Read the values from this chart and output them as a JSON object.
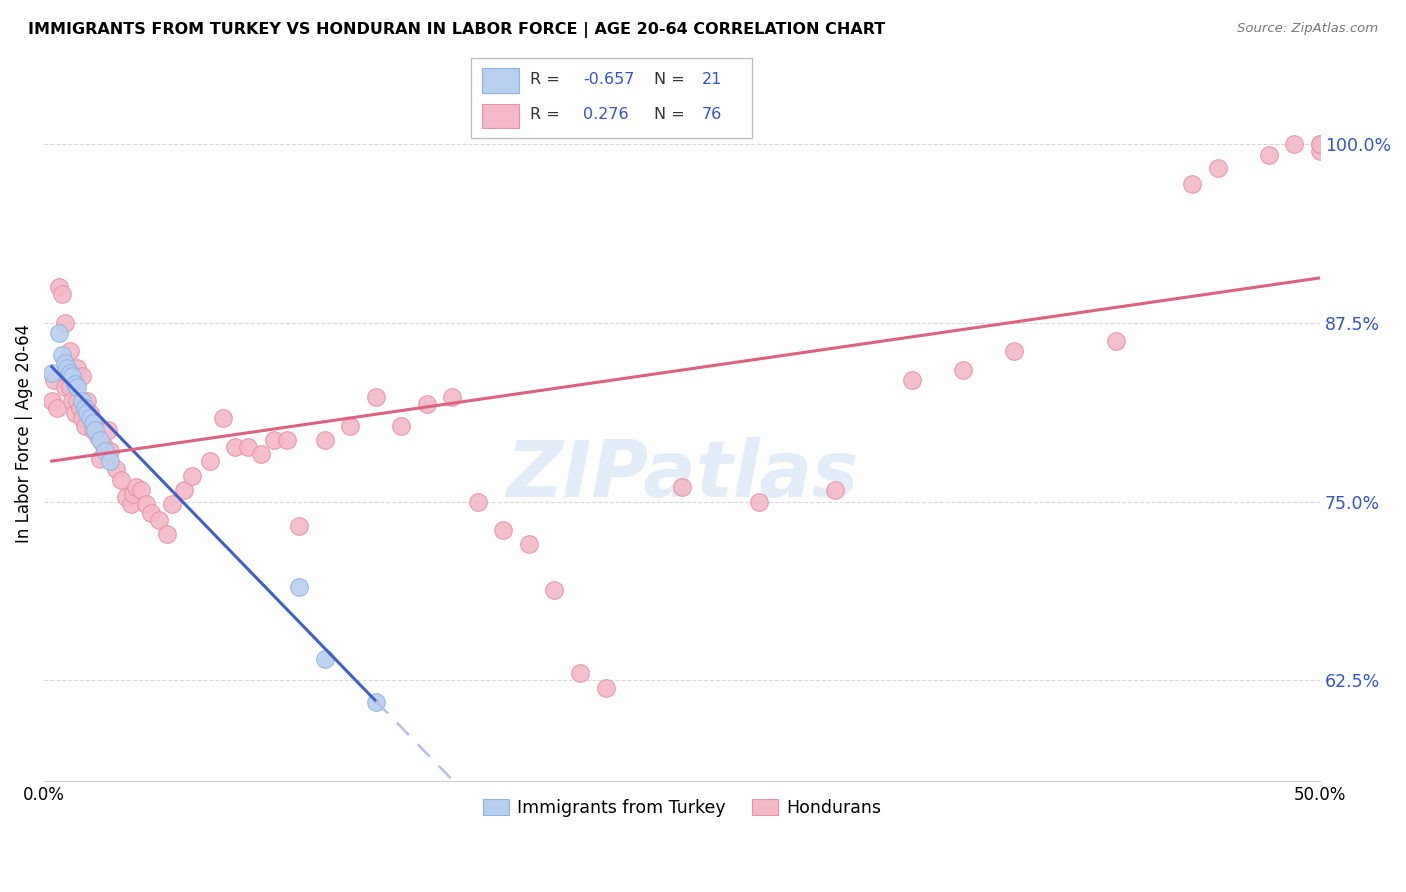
{
  "title": "IMMIGRANTS FROM TURKEY VS HONDURAN IN LABOR FORCE | AGE 20-64 CORRELATION CHART",
  "source": "Source: ZipAtlas.com",
  "ylabel": "In Labor Force | Age 20-64",
  "xmin": 0.0,
  "xmax": 0.5,
  "ymin": 0.555,
  "ymax": 1.04,
  "yticks": [
    0.625,
    0.75,
    0.875,
    1.0
  ],
  "ytick_labels": [
    "62.5%",
    "75.0%",
    "87.5%",
    "100.0%"
  ],
  "xticks": [
    0.0,
    0.05,
    0.1,
    0.15,
    0.2,
    0.25,
    0.3,
    0.35,
    0.4,
    0.45,
    0.5
  ],
  "xtick_labels": [
    "0.0%",
    "",
    "",
    "",
    "",
    "",
    "",
    "",
    "",
    "",
    "50.0%"
  ],
  "background_color": "#ffffff",
  "grid_color": "#d8d8d8",
  "turkey_color": "#b8d0f0",
  "turkey_edge_color": "#90b4e0",
  "honduran_color": "#f5b8c8",
  "honduran_edge_color": "#e890a8",
  "legend_color": "#3355cc",
  "turkey_line_color": "#4060c8",
  "turkey_line_dash_color": "#b0c0e8",
  "honduran_line_color": "#e06080",
  "turkey_scatter_x": [
    0.003,
    0.006,
    0.007,
    0.008,
    0.009,
    0.01,
    0.011,
    0.012,
    0.013,
    0.015,
    0.016,
    0.017,
    0.018,
    0.019,
    0.02,
    0.022,
    0.024,
    0.026,
    0.1,
    0.11,
    0.13
  ],
  "turkey_scatter_y": [
    0.84,
    0.868,
    0.852,
    0.847,
    0.843,
    0.84,
    0.838,
    0.832,
    0.83,
    0.82,
    0.815,
    0.812,
    0.808,
    0.805,
    0.8,
    0.793,
    0.785,
    0.778,
    0.69,
    0.64,
    0.61
  ],
  "honduran_scatter_x": [
    0.003,
    0.004,
    0.005,
    0.006,
    0.007,
    0.008,
    0.008,
    0.009,
    0.01,
    0.01,
    0.011,
    0.012,
    0.012,
    0.013,
    0.013,
    0.014,
    0.015,
    0.015,
    0.016,
    0.017,
    0.018,
    0.019,
    0.02,
    0.021,
    0.022,
    0.023,
    0.025,
    0.026,
    0.028,
    0.03,
    0.032,
    0.034,
    0.035,
    0.036,
    0.038,
    0.04,
    0.042,
    0.045,
    0.048,
    0.05,
    0.055,
    0.058,
    0.065,
    0.07,
    0.075,
    0.08,
    0.085,
    0.09,
    0.095,
    0.1,
    0.11,
    0.12,
    0.13,
    0.14,
    0.15,
    0.16,
    0.17,
    0.18,
    0.19,
    0.2,
    0.21,
    0.22,
    0.25,
    0.28,
    0.31,
    0.34,
    0.36,
    0.38,
    0.42,
    0.45,
    0.46,
    0.48,
    0.49,
    0.5,
    0.5,
    0.5
  ],
  "honduran_scatter_y": [
    0.82,
    0.835,
    0.815,
    0.9,
    0.895,
    0.83,
    0.875,
    0.84,
    0.83,
    0.855,
    0.82,
    0.812,
    0.835,
    0.82,
    0.843,
    0.815,
    0.808,
    0.838,
    0.803,
    0.82,
    0.812,
    0.8,
    0.805,
    0.795,
    0.78,
    0.79,
    0.8,
    0.785,
    0.773,
    0.765,
    0.753,
    0.748,
    0.755,
    0.76,
    0.758,
    0.748,
    0.742,
    0.737,
    0.727,
    0.748,
    0.758,
    0.768,
    0.778,
    0.808,
    0.788,
    0.788,
    0.783,
    0.793,
    0.793,
    0.733,
    0.793,
    0.803,
    0.823,
    0.803,
    0.818,
    0.823,
    0.75,
    0.73,
    0.72,
    0.688,
    0.63,
    0.62,
    0.76,
    0.75,
    0.758,
    0.835,
    0.842,
    0.855,
    0.862,
    0.972,
    0.983,
    0.992,
    1.0,
    0.995,
    1.0,
    1.0
  ]
}
